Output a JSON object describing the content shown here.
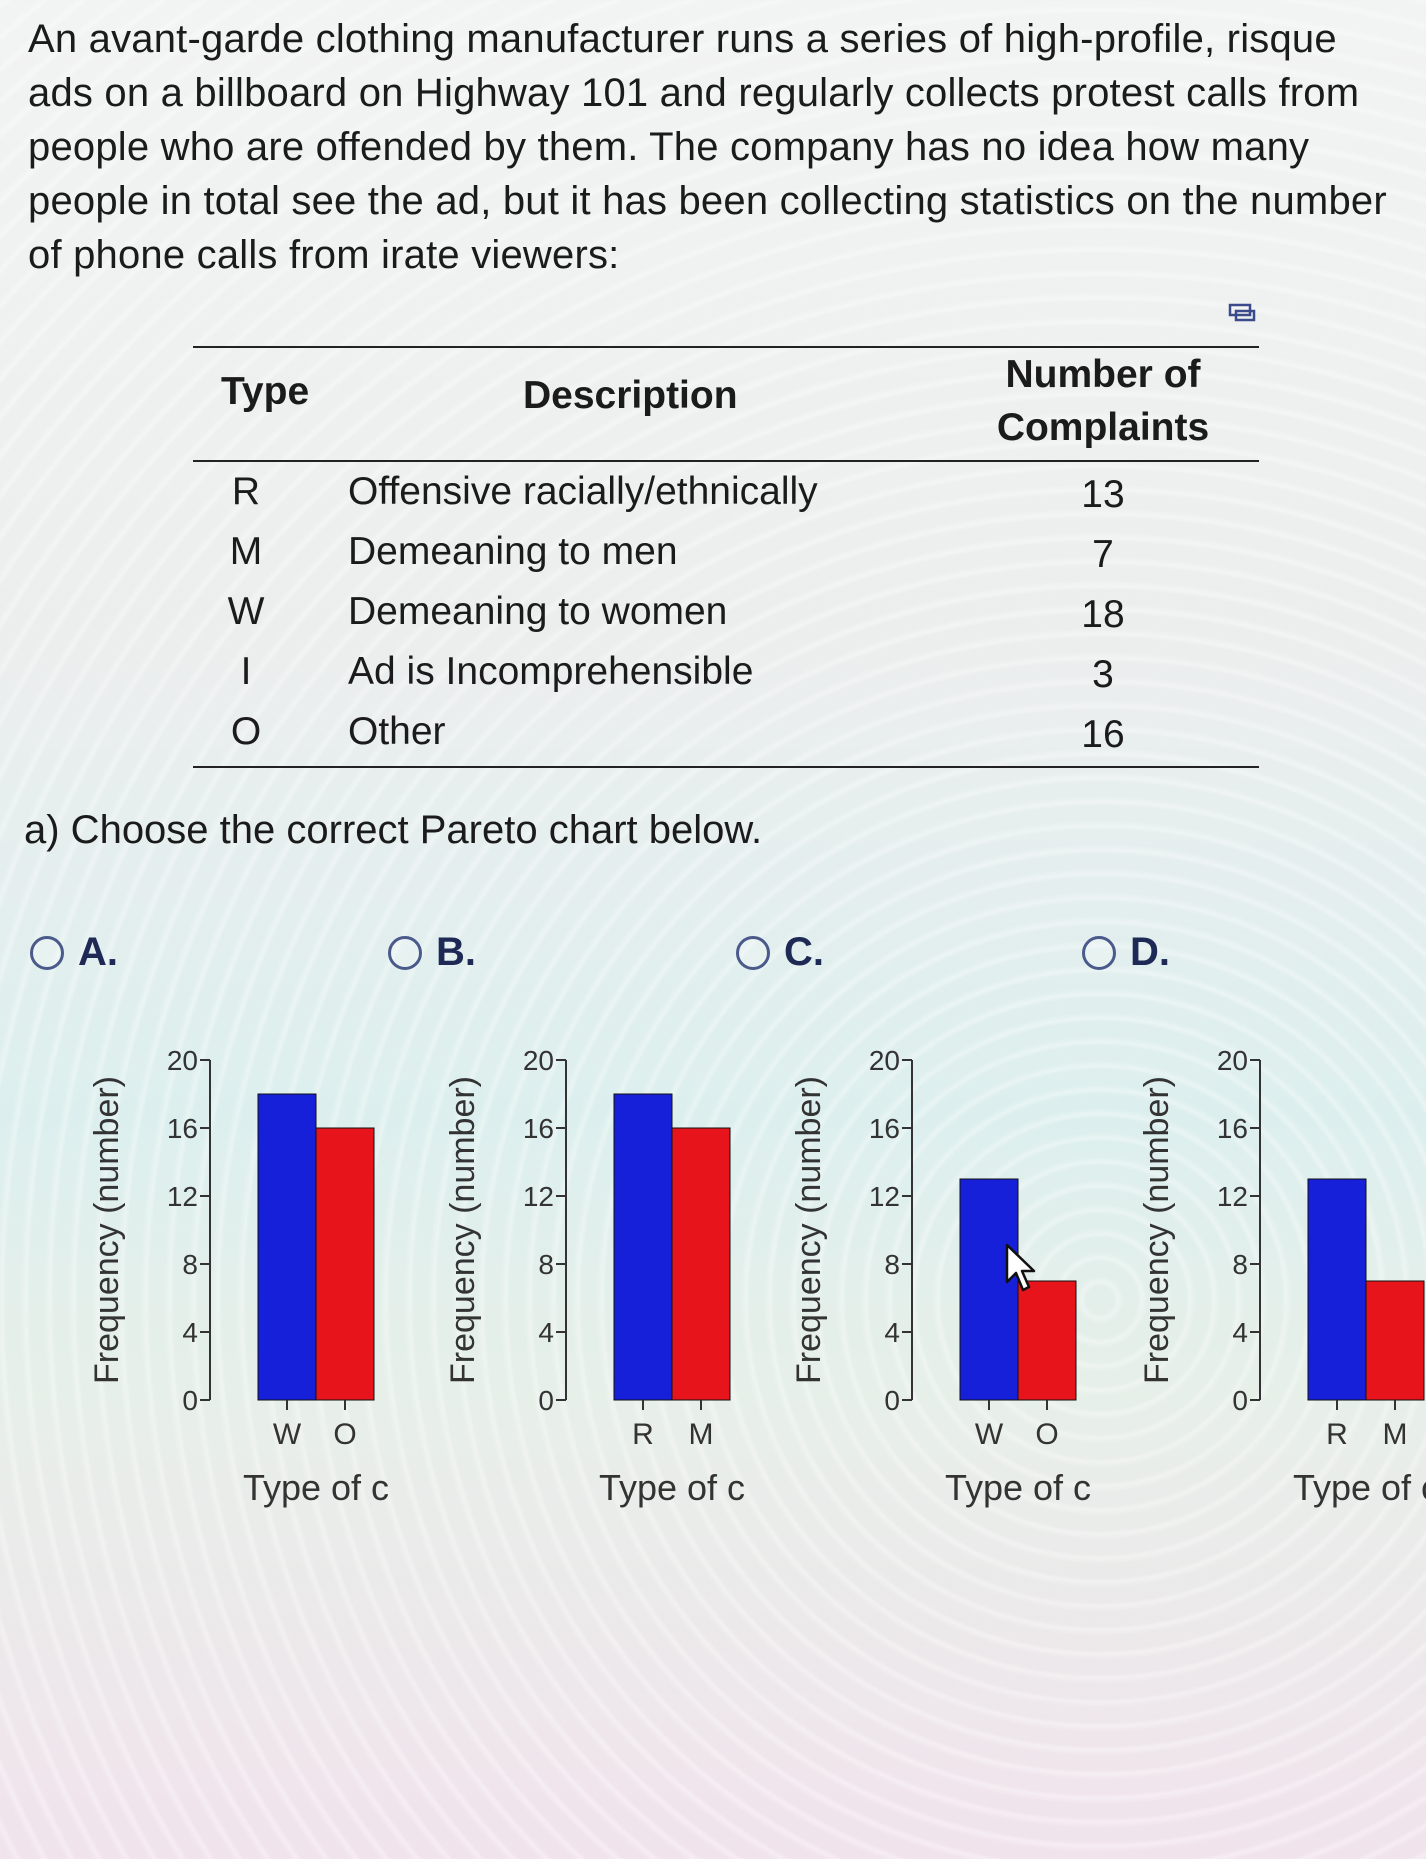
{
  "problem_text": "An avant-garde clothing manufacturer runs a series of high-profile, risque ads on a billboard on Highway 101 and regularly collects protest calls from people who are offended by them. The company has no idea how many people in total see the ad, but it has been collecting statistics on the number of phone calls from irate viewers:",
  "table": {
    "headers": {
      "type": "Type",
      "description": "Description",
      "complaints_line1": "Number of",
      "complaints_line2": "Complaints"
    },
    "rows": [
      {
        "type": "R",
        "description": "Offensive racially/ethnically",
        "complaints": "13"
      },
      {
        "type": "M",
        "description": "Demeaning to men",
        "complaints": "7"
      },
      {
        "type": "W",
        "description": "Demeaning to women",
        "complaints": "18"
      },
      {
        "type": "I",
        "description": "Ad is Incomprehensible",
        "complaints": "3"
      },
      {
        "type": "O",
        "description": "Other",
        "complaints": "16"
      }
    ]
  },
  "question": "a) Choose the correct Pareto chart below.",
  "options": [
    {
      "label": "A."
    },
    {
      "label": "B."
    },
    {
      "label": "C."
    },
    {
      "label": "D."
    }
  ],
  "colors": {
    "bar1": "#1520d8",
    "bar2": "#e8141c",
    "radio": "#4a5a8a"
  },
  "chart_data": [
    {
      "type": "bar",
      "option": "A",
      "categories": [
        "W",
        "O"
      ],
      "values": [
        18,
        16
      ],
      "ylabel": "Frequency (number)",
      "xlabel": "Type of c",
      "yticks": [
        "0",
        "4",
        "8",
        "12",
        "16",
        "20"
      ],
      "ylim": [
        0,
        20
      ]
    },
    {
      "type": "bar",
      "option": "B",
      "categories": [
        "R",
        "M"
      ],
      "values": [
        18,
        16
      ],
      "ylabel": "Frequency (number)",
      "xlabel": "Type of c",
      "yticks": [
        "0",
        "4",
        "8",
        "12",
        "16",
        "20"
      ],
      "ylim": [
        0,
        20
      ]
    },
    {
      "type": "bar",
      "option": "C",
      "categories": [
        "W",
        "O"
      ],
      "values": [
        13,
        7
      ],
      "ylabel": "Frequency (number)",
      "xlabel": "Type of c",
      "yticks": [
        "0",
        "4",
        "8",
        "12",
        "16",
        "20"
      ],
      "ylim": [
        0,
        20
      ]
    },
    {
      "type": "bar",
      "option": "D",
      "categories": [
        "R",
        "M"
      ],
      "values": [
        13,
        7
      ],
      "ylabel": "Frequency (number)",
      "xlabel": "Type of c",
      "yticks": [
        "0",
        "4",
        "8",
        "12",
        "16",
        "20"
      ],
      "ylim": [
        0,
        20
      ]
    }
  ]
}
